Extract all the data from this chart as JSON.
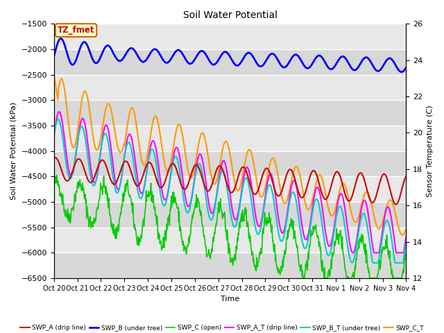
{
  "title": "Soil Water Potential",
  "ylabel_left": "Soil Water Potential (kPa)",
  "ylabel_right": "Sensor Temperature (C)",
  "xlabel": "Time",
  "ylim_left": [
    -6500,
    -1500
  ],
  "ylim_right": [
    12,
    26
  ],
  "yticks_left": [
    -6500,
    -6000,
    -5500,
    -5000,
    -4500,
    -4000,
    -3500,
    -3000,
    -2500,
    -2000,
    -1500
  ],
  "yticks_right": [
    12,
    14,
    16,
    18,
    20,
    22,
    24,
    26
  ],
  "xtick_labels": [
    "Oct 20",
    "Oct 21",
    "Oct 22",
    "Oct 23",
    "Oct 24",
    "Oct 25",
    "Oct 26",
    "Oct 27",
    "Oct 28",
    "Oct 29",
    "Oct 30",
    "Oct 31",
    "Nov 1",
    "Nov 2",
    "Nov 3",
    "Nov 4"
  ],
  "annotation_text": "TZ_fmet",
  "annotation_box_color": "#ffffcc",
  "annotation_border_color": "#cc6600",
  "annotation_text_color": "#cc0000",
  "plot_bg_color": "#d8d8d8",
  "fig_bg_color": "#ffffff",
  "grid_color": "#ffffff",
  "lines": {
    "SWP_A": {
      "color": "#cc0000",
      "label": "SWP_A (drip line)",
      "lw": 1.5
    },
    "SWP_B": {
      "color": "#0000ff",
      "label": "SWP_B (under tree)",
      "lw": 2.0
    },
    "SWP_C": {
      "color": "#00cc00",
      "label": "SWP_C (open)",
      "lw": 1.2
    },
    "SWP_A_T": {
      "color": "#ff00ff",
      "label": "SWP_A_T (drip line)",
      "lw": 1.5
    },
    "SWP_B_T": {
      "color": "#00cccc",
      "label": "SWP_B_T (under tree)",
      "lw": 1.5
    },
    "SWP_C_T": {
      "color": "#ff9900",
      "label": "SWP_C_T",
      "lw": 1.5
    }
  },
  "n_points": 800,
  "legend_labels": [
    "SWP_A (drip line)",
    "SWP_B (under tree)",
    "SWP_C (open)",
    "SWP_A_T (drip line)",
    "SWP_B_T (under tree)",
    "SWP_C_T"
  ]
}
